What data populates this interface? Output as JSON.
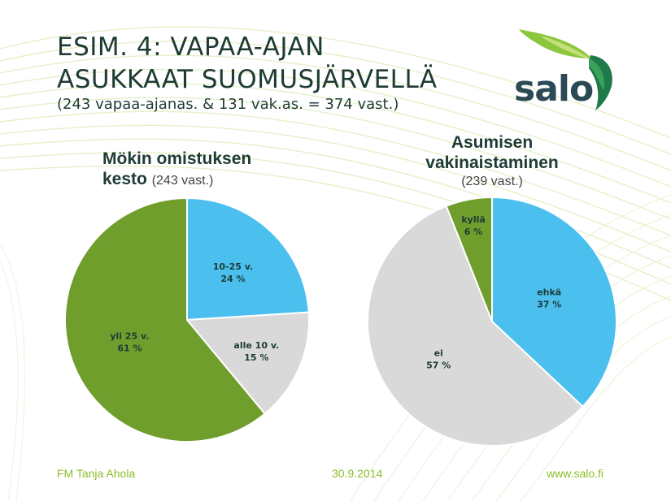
{
  "slide": {
    "title_line1": "ESIM. 4: VAPAA-AJAN",
    "title_line2": "ASUKKAAT SUOMUSJÄRVELLÄ",
    "subtitle": "(243 vapaa-ajanas. & 131 vak.as. = 374 vast.)",
    "logo_text": "salo",
    "footer": {
      "author": "FM Tanja Ahola",
      "date": "30.9.2014",
      "url": "www.salo.fi"
    }
  },
  "colors": {
    "blue": "#4bc0ef",
    "gray": "#d9d9d9",
    "green": "#6f9e2c",
    "title": "#1e3b36",
    "footer": "#8bbd2a"
  },
  "chart_data": [
    {
      "type": "pie",
      "title_line1": "Mökin omistuksen",
      "title_line2": "kesto",
      "count": "(243 vast.)",
      "slices": [
        {
          "label": "10-25 v.",
          "value": 24,
          "value_text": "24 %",
          "color": "#4bc0ef"
        },
        {
          "label": "alle 10 v.",
          "value": 15,
          "value_text": "15 %",
          "color": "#d9d9d9"
        },
        {
          "label": "yli 25 v.",
          "value": 61,
          "value_text": "61 %",
          "color": "#6f9e2c"
        }
      ]
    },
    {
      "type": "pie",
      "title_line1": "Asumisen",
      "title_line2": "vakinaistaminen",
      "count": "(239 vast.)",
      "slices": [
        {
          "label": "ehkä",
          "value": 37,
          "value_text": "37 %",
          "color": "#4bc0ef"
        },
        {
          "label": "ei",
          "value": 57,
          "value_text": "57 %",
          "color": "#d9d9d9"
        },
        {
          "label": "kyllä",
          "value": 6,
          "value_text": "6 %",
          "color": "#6f9e2c"
        }
      ]
    }
  ]
}
